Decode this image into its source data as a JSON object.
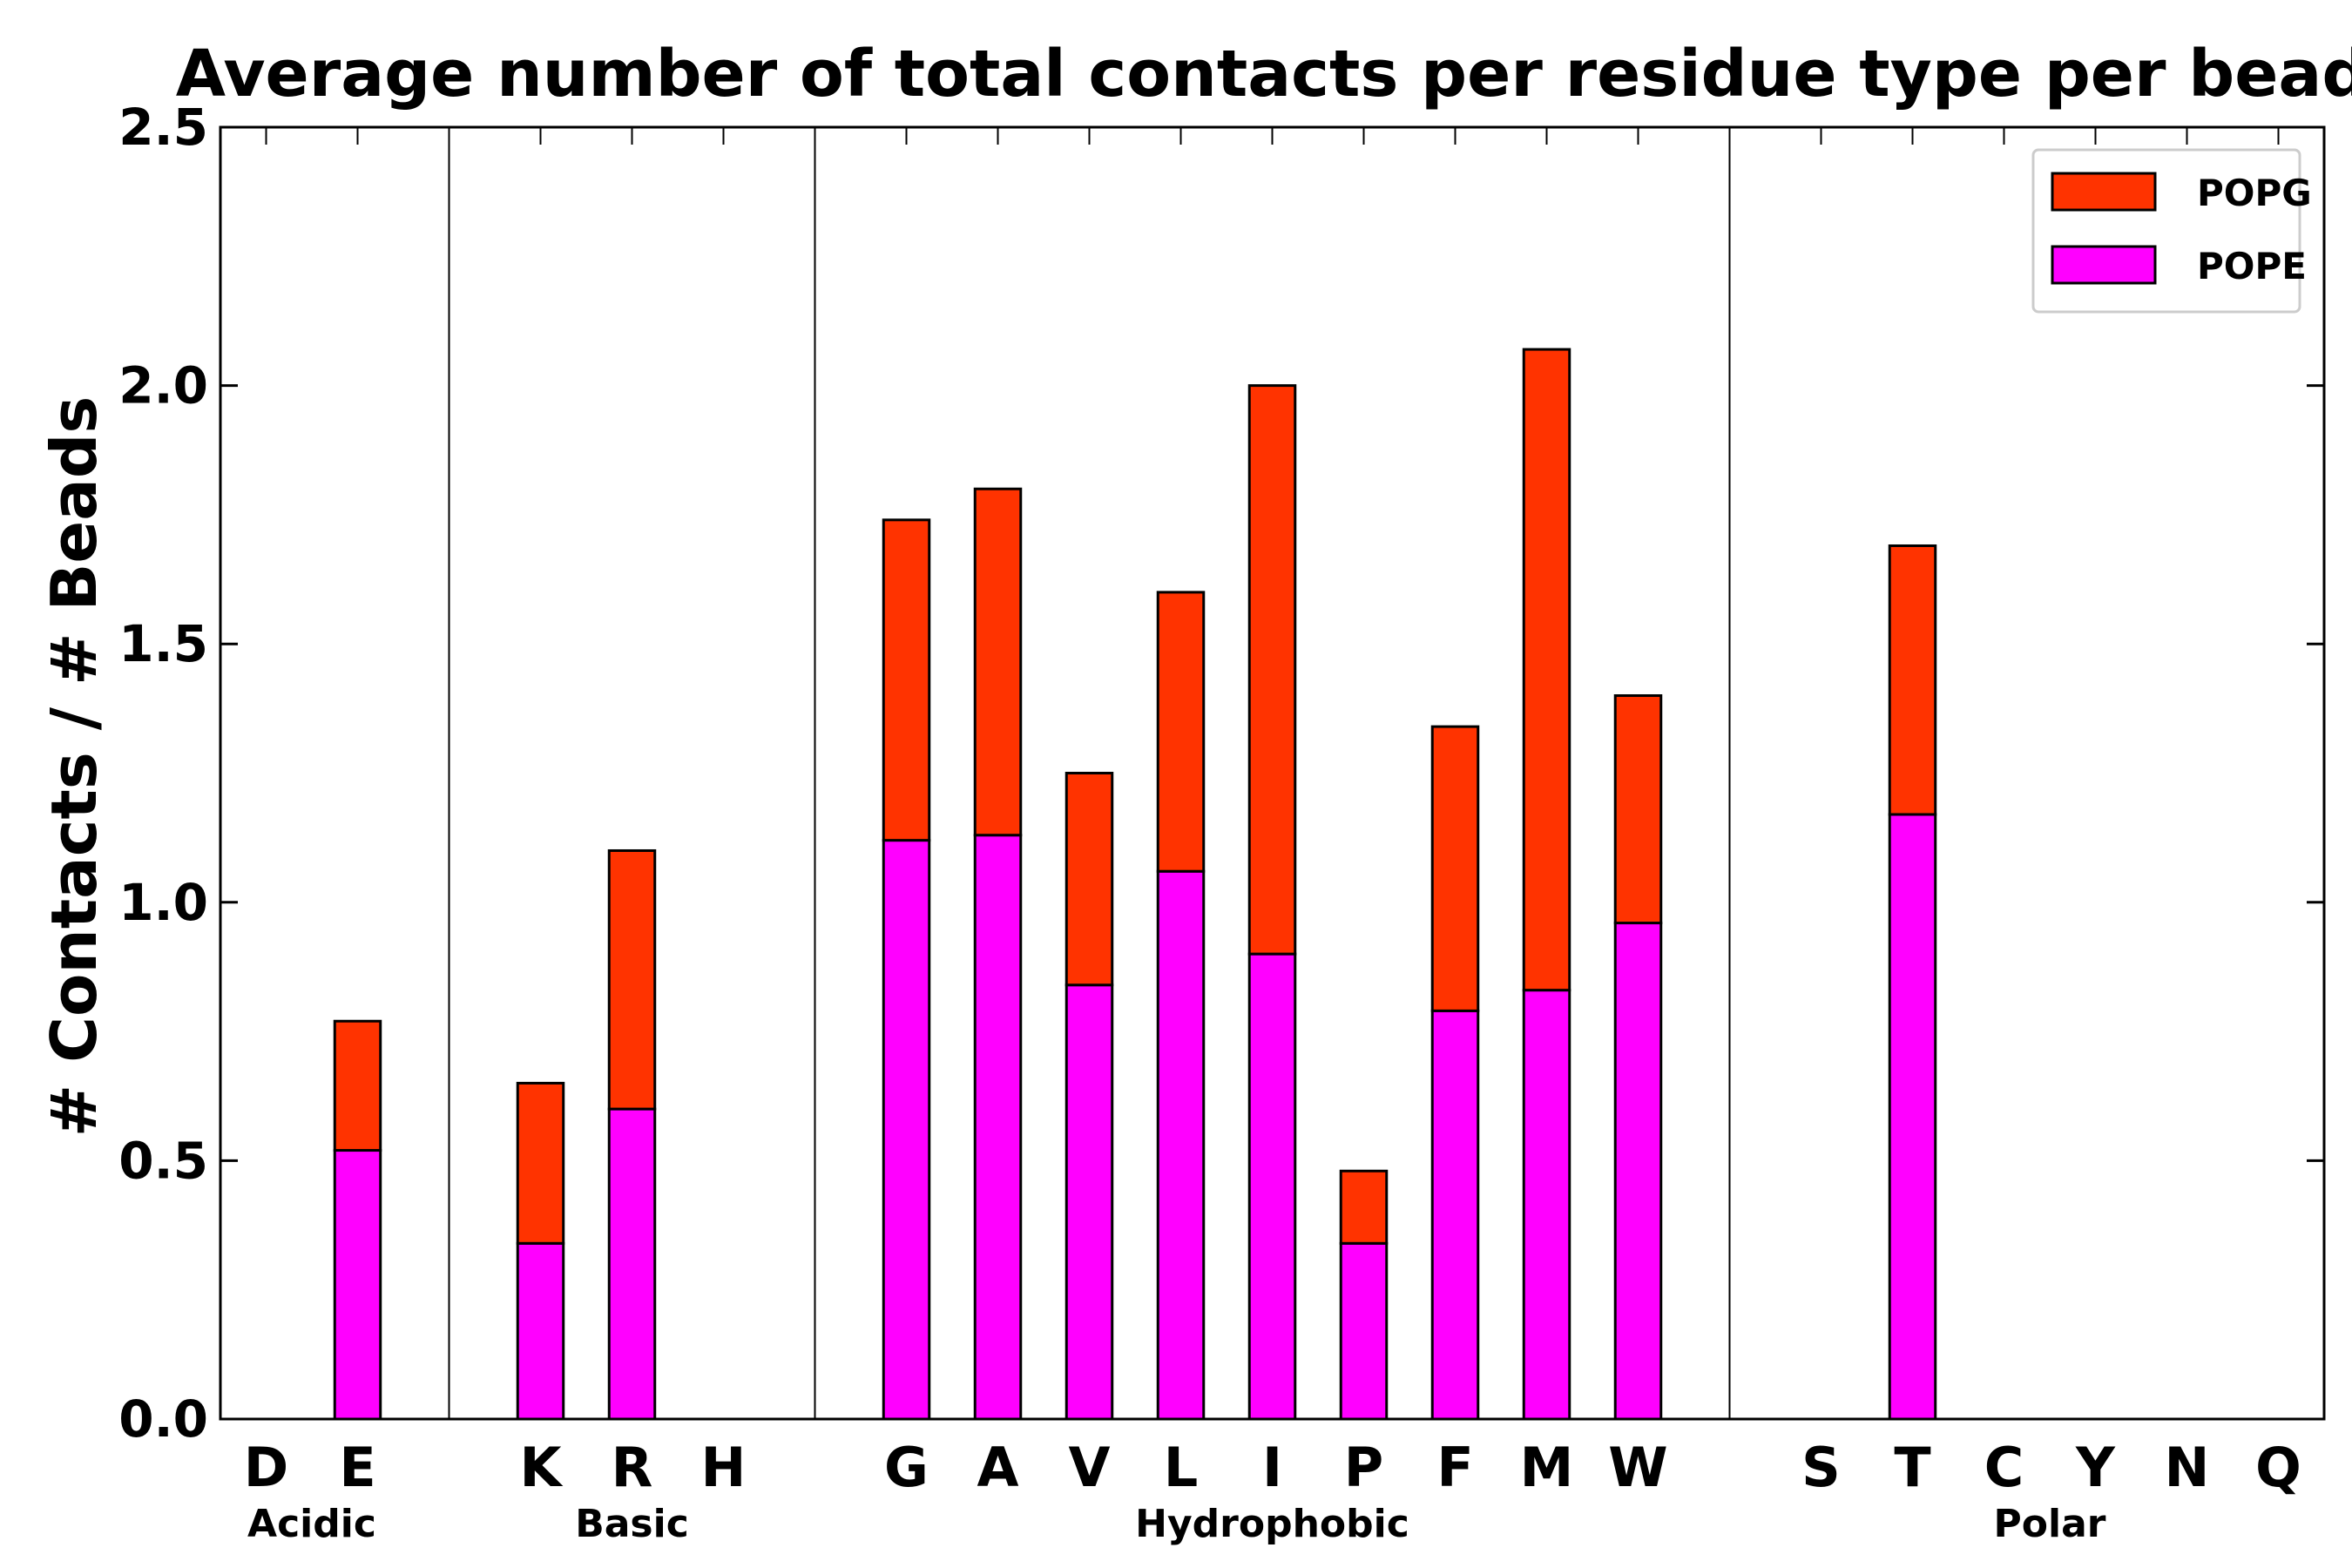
{
  "chart_data": {
    "type": "bar",
    "stacked": true,
    "title": "Average number of total contacts per residue type per bead",
    "xlabel": "",
    "ylabel": "# Contacts / # Beads",
    "ylim": [
      0,
      2.5
    ],
    "yticks": [
      "0.0",
      "0.5",
      "1.0",
      "1.5",
      "2.0",
      "2.5"
    ],
    "ytick_values": [
      0,
      0.5,
      1.0,
      1.5,
      2.0,
      2.5
    ],
    "categories": [
      "D",
      "E",
      "",
      "K",
      "R",
      "H",
      "",
      "G",
      "A",
      "V",
      "L",
      "I",
      "P",
      "F",
      "M",
      "W",
      "",
      "S",
      "T",
      "C",
      "Y",
      "N",
      "Q"
    ],
    "series": [
      {
        "name": "POPE",
        "color": "#ff00ff",
        "values": [
          0,
          0.52,
          0,
          0.34,
          0.6,
          0,
          0,
          1.12,
          1.13,
          0.84,
          1.06,
          0.9,
          0.34,
          0.79,
          0.83,
          0.96,
          0,
          0,
          1.17,
          0,
          0,
          0,
          0
        ]
      },
      {
        "name": "POPG",
        "color": "#ff3300",
        "values": [
          0,
          0.25,
          0,
          0.31,
          0.5,
          0,
          0,
          0.62,
          0.67,
          0.41,
          0.54,
          1.1,
          0.14,
          0.55,
          1.24,
          0.44,
          0,
          0,
          0.52,
          0,
          0,
          0,
          0
        ]
      }
    ],
    "groups": [
      {
        "label": "Acidic",
        "from": 0,
        "to": 1
      },
      {
        "label": "Basic",
        "from": 3,
        "to": 5
      },
      {
        "label": "Hydrophobic",
        "from": 7,
        "to": 15
      },
      {
        "label": "Polar",
        "from": 17,
        "to": 22
      }
    ],
    "separators_after_index": [
      2,
      6,
      16
    ],
    "legend": {
      "position": "top-right",
      "entries": [
        "POPG",
        "POPE"
      ]
    },
    "grid": false
  }
}
